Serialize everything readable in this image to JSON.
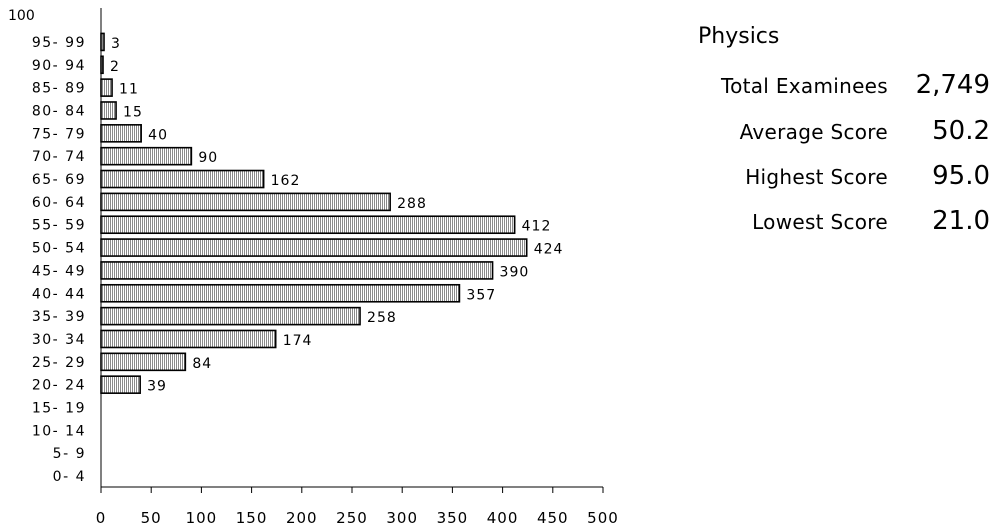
{
  "chart_data": {
    "type": "bar",
    "orientation": "horizontal",
    "title": "",
    "xlabel": "",
    "ylabel": "",
    "xlim": [
      0,
      500
    ],
    "x_ticks": [
      0,
      50,
      100,
      150,
      200,
      250,
      300,
      350,
      400,
      450,
      500
    ],
    "y_top_label": "100",
    "categories": [
      "95- 99",
      "90- 94",
      "85- 89",
      "80- 84",
      "75- 79",
      "70- 74",
      "65- 69",
      "60- 64",
      "55- 59",
      "50- 54",
      "45- 49",
      "40- 44",
      "35- 39",
      "30- 34",
      "25- 29",
      "20- 24",
      "15- 19",
      "10- 14",
      "5- 9",
      "0- 4"
    ],
    "values": [
      3,
      2,
      11,
      15,
      40,
      90,
      162,
      288,
      412,
      424,
      390,
      357,
      258,
      174,
      84,
      39,
      null,
      null,
      null,
      null
    ],
    "grid": false,
    "bar_pattern": "vertical-hatch",
    "bar_color": "#d6d6d6",
    "bar_stroke": "#000000"
  },
  "stats": {
    "title": "Physics",
    "rows": [
      {
        "label": "Total Examinees",
        "value": "2,749"
      },
      {
        "label": "Average Score",
        "value": "50.2"
      },
      {
        "label": "Highest Score",
        "value": "95.0"
      },
      {
        "label": "Lowest Score",
        "value": "21.0"
      }
    ]
  }
}
